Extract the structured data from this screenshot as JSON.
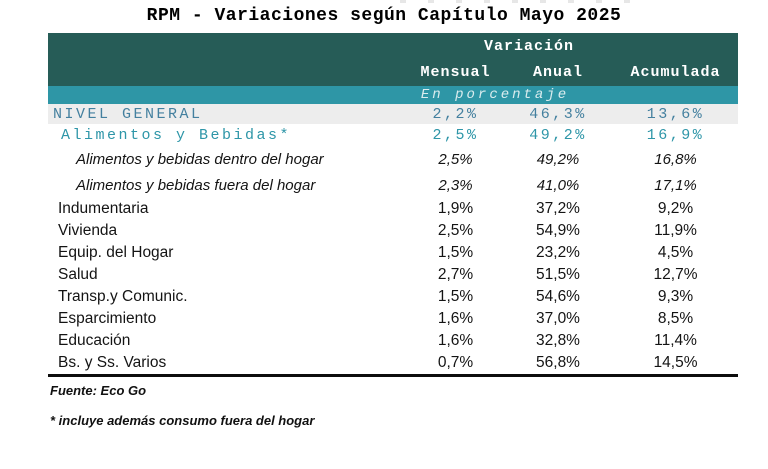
{
  "page": {
    "title": "RPM - Variaciones según Capítulo Mayo 2025"
  },
  "table": {
    "header": {
      "group_label": "Variación",
      "columns": [
        "Mensual",
        "Anual",
        "Acumulada"
      ],
      "unit_note": "En porcentaje"
    },
    "rows": [
      {
        "label": "NIVEL GENERAL",
        "mensual": "2,2%",
        "anual": "46,3%",
        "acumulada": "13,6%",
        "level": "total"
      },
      {
        "label": "Alimentos y Bebidas*",
        "mensual": "2,5%",
        "anual": "49,2%",
        "acumulada": "16,9%",
        "level": "chapter-highlight"
      },
      {
        "label": "Alimentos y bebidas dentro del hogar",
        "mensual": "2,5%",
        "anual": "49,2%",
        "acumulada": "16,8%",
        "level": "subitem"
      },
      {
        "label": "Alimentos y bebidas fuera del hogar",
        "mensual": "2,3%",
        "anual": "41,0%",
        "acumulada": "17,1%",
        "level": "subitem"
      },
      {
        "label": "Indumentaria",
        "mensual": "1,9%",
        "anual": "37,2%",
        "acumulada": "9,2%",
        "level": "chapter"
      },
      {
        "label": "Vivienda",
        "mensual": "2,5%",
        "anual": "54,9%",
        "acumulada": "11,9%",
        "level": "chapter"
      },
      {
        "label": "Equip. del Hogar",
        "mensual": "1,5%",
        "anual": "23,2%",
        "acumulada": "4,5%",
        "level": "chapter"
      },
      {
        "label": "Salud",
        "mensual": "2,7%",
        "anual": "51,5%",
        "acumulada": "12,7%",
        "level": "chapter"
      },
      {
        "label": "Transp.y Comunic.",
        "mensual": "1,5%",
        "anual": "54,6%",
        "acumulada": "9,3%",
        "level": "chapter"
      },
      {
        "label": "Esparcimiento",
        "mensual": "1,6%",
        "anual": "37,0%",
        "acumulada": "8,5%",
        "level": "chapter"
      },
      {
        "label": "Educación",
        "mensual": "1,6%",
        "anual": "32,8%",
        "acumulada": "11,4%",
        "level": "chapter"
      },
      {
        "label": "Bs. y Ss. Varios",
        "mensual": "0,7%",
        "anual": "56,8%",
        "acumulada": "14,5%",
        "level": "chapter"
      }
    ]
  },
  "footer": {
    "source": "Fuente: Eco Go",
    "footnote": "* incluye además consumo fuera del hogar"
  },
  "colors": {
    "header_bg": "#265c57",
    "band_bg": "#2e96a6",
    "total_text": "#44809f",
    "highlight_text": "#2e96a8",
    "total_row_bg": "#ededed",
    "body_text": "#141414"
  },
  "chart_data": {
    "type": "table",
    "title": "RPM - Variaciones según Capítulo Mayo 2025",
    "unit": "En porcentaje",
    "columns": [
      "Mensual",
      "Anual",
      "Acumulada"
    ],
    "source": "Eco Go",
    "footnote": "* incluye además consumo fuera del hogar",
    "rows": [
      {
        "category": "NIVEL GENERAL",
        "mensual": 2.2,
        "anual": 46.3,
        "acumulada": 13.6
      },
      {
        "category": "Alimentos y Bebidas*",
        "mensual": 2.5,
        "anual": 49.2,
        "acumulada": 16.9
      },
      {
        "category": "Alimentos y bebidas dentro del hogar",
        "mensual": 2.5,
        "anual": 49.2,
        "acumulada": 16.8
      },
      {
        "category": "Alimentos y bebidas fuera del hogar",
        "mensual": 2.3,
        "anual": 41.0,
        "acumulada": 17.1
      },
      {
        "category": "Indumentaria",
        "mensual": 1.9,
        "anual": 37.2,
        "acumulada": 9.2
      },
      {
        "category": "Vivienda",
        "mensual": 2.5,
        "anual": 54.9,
        "acumulada": 11.9
      },
      {
        "category": "Equip. del Hogar",
        "mensual": 1.5,
        "anual": 23.2,
        "acumulada": 4.5
      },
      {
        "category": "Salud",
        "mensual": 2.7,
        "anual": 51.5,
        "acumulada": 12.7
      },
      {
        "category": "Transp.y Comunic.",
        "mensual": 1.5,
        "anual": 54.6,
        "acumulada": 9.3
      },
      {
        "category": "Esparcimiento",
        "mensual": 1.6,
        "anual": 37.0,
        "acumulada": 8.5
      },
      {
        "category": "Educación",
        "mensual": 1.6,
        "anual": 32.8,
        "acumulada": 11.4
      },
      {
        "category": "Bs. y Ss. Varios",
        "mensual": 0.7,
        "anual": 56.8,
        "acumulada": 14.5
      }
    ]
  }
}
